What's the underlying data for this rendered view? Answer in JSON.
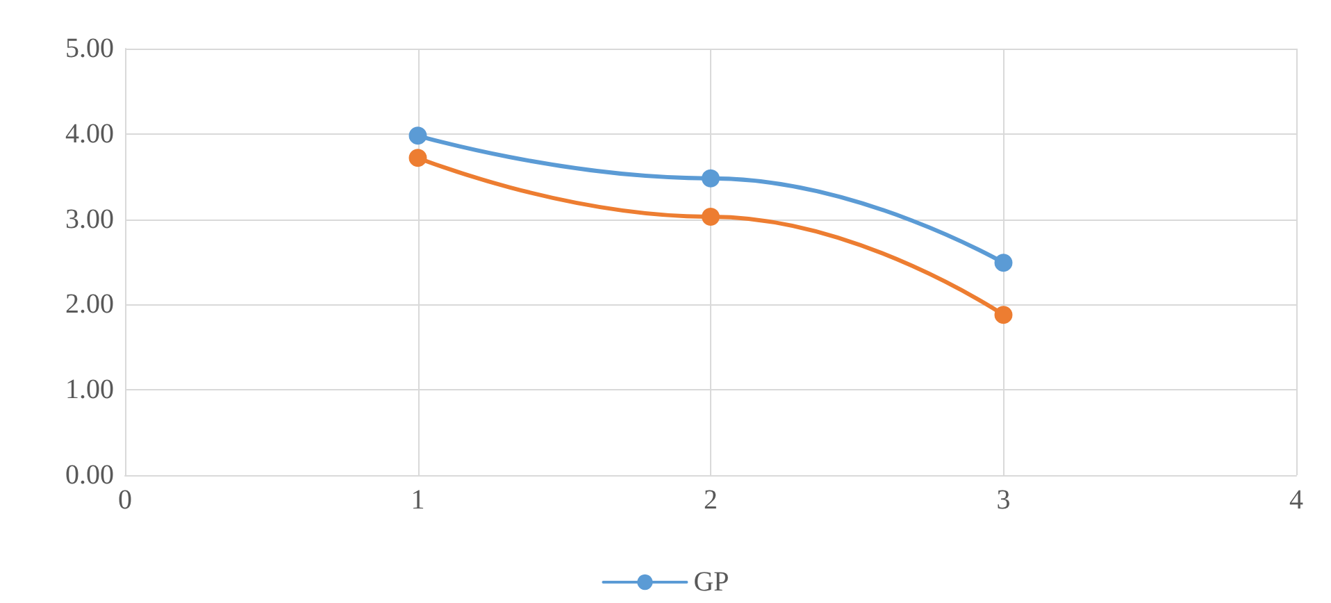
{
  "chart_data": {
    "type": "line",
    "x": [
      1,
      2,
      3
    ],
    "series": [
      {
        "name": "GP",
        "color": "#5b9bd5",
        "values": [
          3.98,
          3.48,
          2.49
        ]
      },
      {
        "color": "#ed7d31",
        "values": [
          3.72,
          3.03,
          1.88
        ]
      }
    ],
    "xlim": [
      0,
      4
    ],
    "xticks": [
      0,
      1,
      2,
      3,
      4
    ],
    "ylim": [
      0,
      5
    ],
    "yticks": [
      {
        "value": 0,
        "label": "0.00"
      },
      {
        "value": 1,
        "label": "1.00"
      },
      {
        "value": 2,
        "label": "2.00"
      },
      {
        "value": 3,
        "label": "3.00"
      },
      {
        "value": 4,
        "label": "4.00"
      },
      {
        "value": 5,
        "label": "5.00"
      }
    ],
    "grid": true,
    "legend": "bottom",
    "marker": "circle",
    "line_style": "solid"
  }
}
